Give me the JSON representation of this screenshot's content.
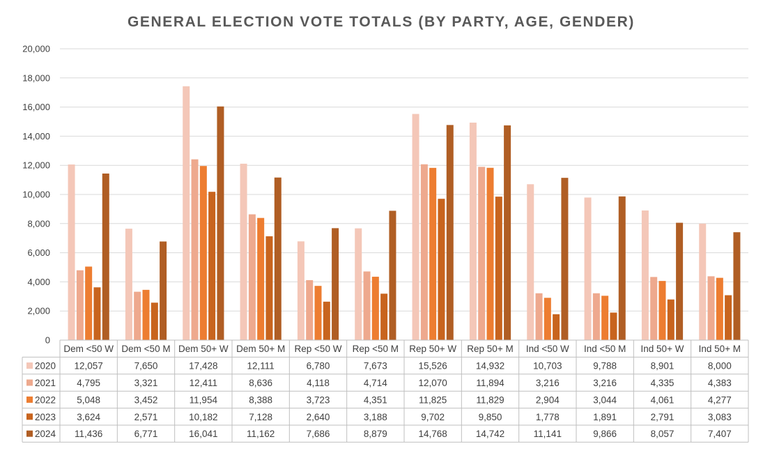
{
  "chart_data": {
    "type": "bar",
    "title": "GENERAL ELECTION VOTE TOTALS (BY PARTY, AGE, GENDER)",
    "xlabel": "",
    "ylabel": "",
    "ylim": [
      0,
      20000
    ],
    "yticks": [
      "0",
      "2,000",
      "4,000",
      "6,000",
      "8,000",
      "10,000",
      "12,000",
      "14,000",
      "16,000",
      "18,000",
      "20,000"
    ],
    "grid": true,
    "legend": "data-table",
    "categories": [
      "Dem <50 W",
      "Dem <50 M",
      "Dem 50+ W",
      "Dem 50+ M",
      "Rep <50 W",
      "Rep <50 M",
      "Rep 50+ W",
      "Rep 50+ M",
      "Ind <50 W",
      "Ind <50 M",
      "Ind 50+ W",
      "Ind 50+ M"
    ],
    "series": [
      {
        "name": "2020",
        "color": "#f4c7b8",
        "values": [
          12057,
          7650,
          17428,
          12111,
          6780,
          7673,
          15526,
          14932,
          10703,
          9788,
          8901,
          8000
        ],
        "labels": [
          "12,057",
          "7,650",
          "17,428",
          "12,111",
          "6,780",
          "7,673",
          "15,526",
          "14,932",
          "10,703",
          "9,788",
          "8,901",
          "8,000"
        ]
      },
      {
        "name": "2021",
        "color": "#eea98e",
        "values": [
          4795,
          3321,
          12411,
          8636,
          4118,
          4714,
          12070,
          11894,
          3216,
          3216,
          4335,
          4383
        ],
        "labels": [
          "4,795",
          "3,321",
          "12,411",
          "8,636",
          "4,118",
          "4,714",
          "12,070",
          "11,894",
          "3,216",
          "3,216",
          "4,335",
          "4,383"
        ]
      },
      {
        "name": "2022",
        "color": "#ed7d31",
        "values": [
          5048,
          3452,
          11954,
          8388,
          3723,
          4351,
          11825,
          11829,
          2904,
          3044,
          4061,
          4277
        ],
        "labels": [
          "5,048",
          "3,452",
          "11,954",
          "8,388",
          "3,723",
          "4,351",
          "11,825",
          "11,829",
          "2,904",
          "3,044",
          "4,061",
          "4,277"
        ]
      },
      {
        "name": "2023",
        "color": "#c8641e",
        "values": [
          3624,
          2571,
          10182,
          7128,
          2640,
          3188,
          9702,
          9850,
          1778,
          1891,
          2791,
          3083
        ],
        "labels": [
          "3,624",
          "2,571",
          "10,182",
          "7,128",
          "2,640",
          "3,188",
          "9,702",
          "9,850",
          "1,778",
          "1,891",
          "2,791",
          "3,083"
        ]
      },
      {
        "name": "2024",
        "color": "#b05e24",
        "values": [
          11436,
          6771,
          16041,
          11162,
          7686,
          8879,
          14768,
          14742,
          11141,
          9866,
          8057,
          7407
        ],
        "labels": [
          "11,436",
          "6,771",
          "16,041",
          "11,162",
          "7,686",
          "8,879",
          "14,768",
          "14,742",
          "11,141",
          "9,866",
          "8,057",
          "7,407"
        ]
      }
    ]
  }
}
